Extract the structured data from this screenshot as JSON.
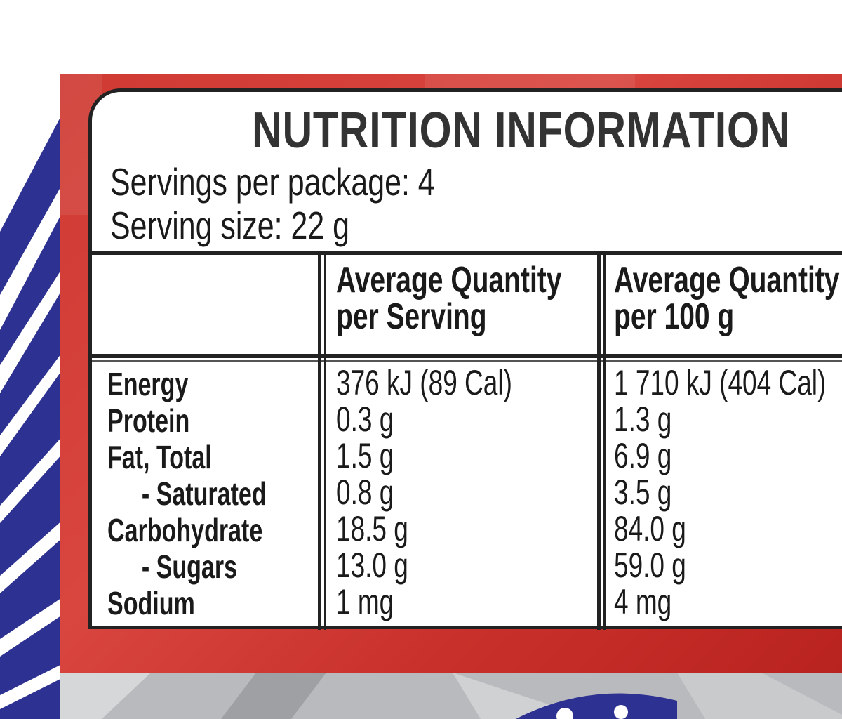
{
  "title": "NUTRITION INFORMATION",
  "servings_per_package": "Servings per package: 4",
  "serving_size": "Serving size: 22 g",
  "columns": {
    "per_serving": [
      "Average Quantity",
      "per Serving"
    ],
    "per_100g": [
      "Average Quantity",
      "per 100 g"
    ]
  },
  "rows": [
    {
      "name": "Energy",
      "per_serving": "376 kJ (89 Cal)",
      "per_100g": "1 710 kJ (404 Cal)"
    },
    {
      "name": "Protein",
      "per_serving": "0.3 g",
      "per_100g": "1.3 g"
    },
    {
      "name": "Fat, Total",
      "per_serving": "1.5 g",
      "per_100g": "6.9 g"
    },
    {
      "name": "- Saturated",
      "per_serving": "0.8 g",
      "per_100g": "3.5 g"
    },
    {
      "name": "Carbohydrate",
      "per_serving": "18.5 g",
      "per_100g": "84.0 g"
    },
    {
      "name": "- Sugars",
      "per_serving": "13.0 g",
      "per_100g": "59.0 g"
    },
    {
      "name": "Sodium",
      "per_serving": "1 mg",
      "per_100g": "4 mg"
    }
  ],
  "colors": {
    "panel_red": "#cf3a33",
    "pack_blue": "#2b2f8f",
    "text": "#1a1a1a",
    "border": "#222222"
  }
}
